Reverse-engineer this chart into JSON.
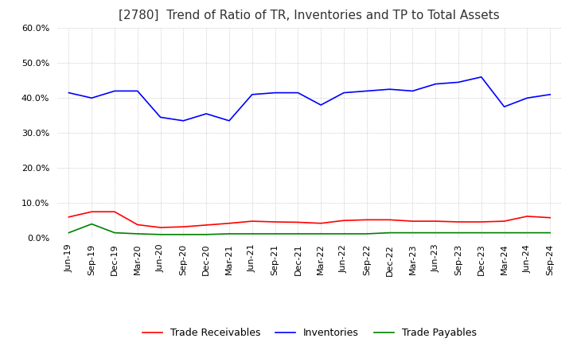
{
  "title": "[2780]  Trend of Ratio of TR, Inventories and TP to Total Assets",
  "labels": [
    "Jun-19",
    "Sep-19",
    "Dec-19",
    "Mar-20",
    "Jun-20",
    "Sep-20",
    "Dec-20",
    "Mar-21",
    "Jun-21",
    "Sep-21",
    "Dec-21",
    "Mar-22",
    "Jun-22",
    "Sep-22",
    "Dec-22",
    "Mar-23",
    "Jun-23",
    "Sep-23",
    "Dec-23",
    "Mar-24",
    "Jun-24",
    "Sep-24"
  ],
  "trade_receivables": [
    0.06,
    0.075,
    0.075,
    0.038,
    0.03,
    0.032,
    0.037,
    0.042,
    0.048,
    0.046,
    0.045,
    0.042,
    0.05,
    0.052,
    0.052,
    0.048,
    0.048,
    0.046,
    0.046,
    0.048,
    0.062,
    0.058
  ],
  "inventories": [
    0.415,
    0.4,
    0.42,
    0.42,
    0.345,
    0.335,
    0.355,
    0.335,
    0.41,
    0.415,
    0.415,
    0.38,
    0.415,
    0.42,
    0.425,
    0.42,
    0.44,
    0.445,
    0.46,
    0.375,
    0.4,
    0.41
  ],
  "trade_payables": [
    0.015,
    0.04,
    0.015,
    0.012,
    0.01,
    0.01,
    0.01,
    0.012,
    0.012,
    0.012,
    0.012,
    0.012,
    0.012,
    0.012,
    0.015,
    0.015,
    0.015,
    0.015,
    0.015,
    0.015,
    0.015,
    0.015
  ],
  "tr_color": "#ff0000",
  "inv_color": "#0000ff",
  "tp_color": "#008000",
  "ylim": [
    0.0,
    0.6
  ],
  "yticks": [
    0.0,
    0.1,
    0.2,
    0.3,
    0.4,
    0.5,
    0.6
  ],
  "grid_color": "#aaaaaa",
  "background_color": "#ffffff",
  "title_fontsize": 11,
  "tick_fontsize": 8,
  "legend_labels": [
    "Trade Receivables",
    "Inventories",
    "Trade Payables"
  ]
}
